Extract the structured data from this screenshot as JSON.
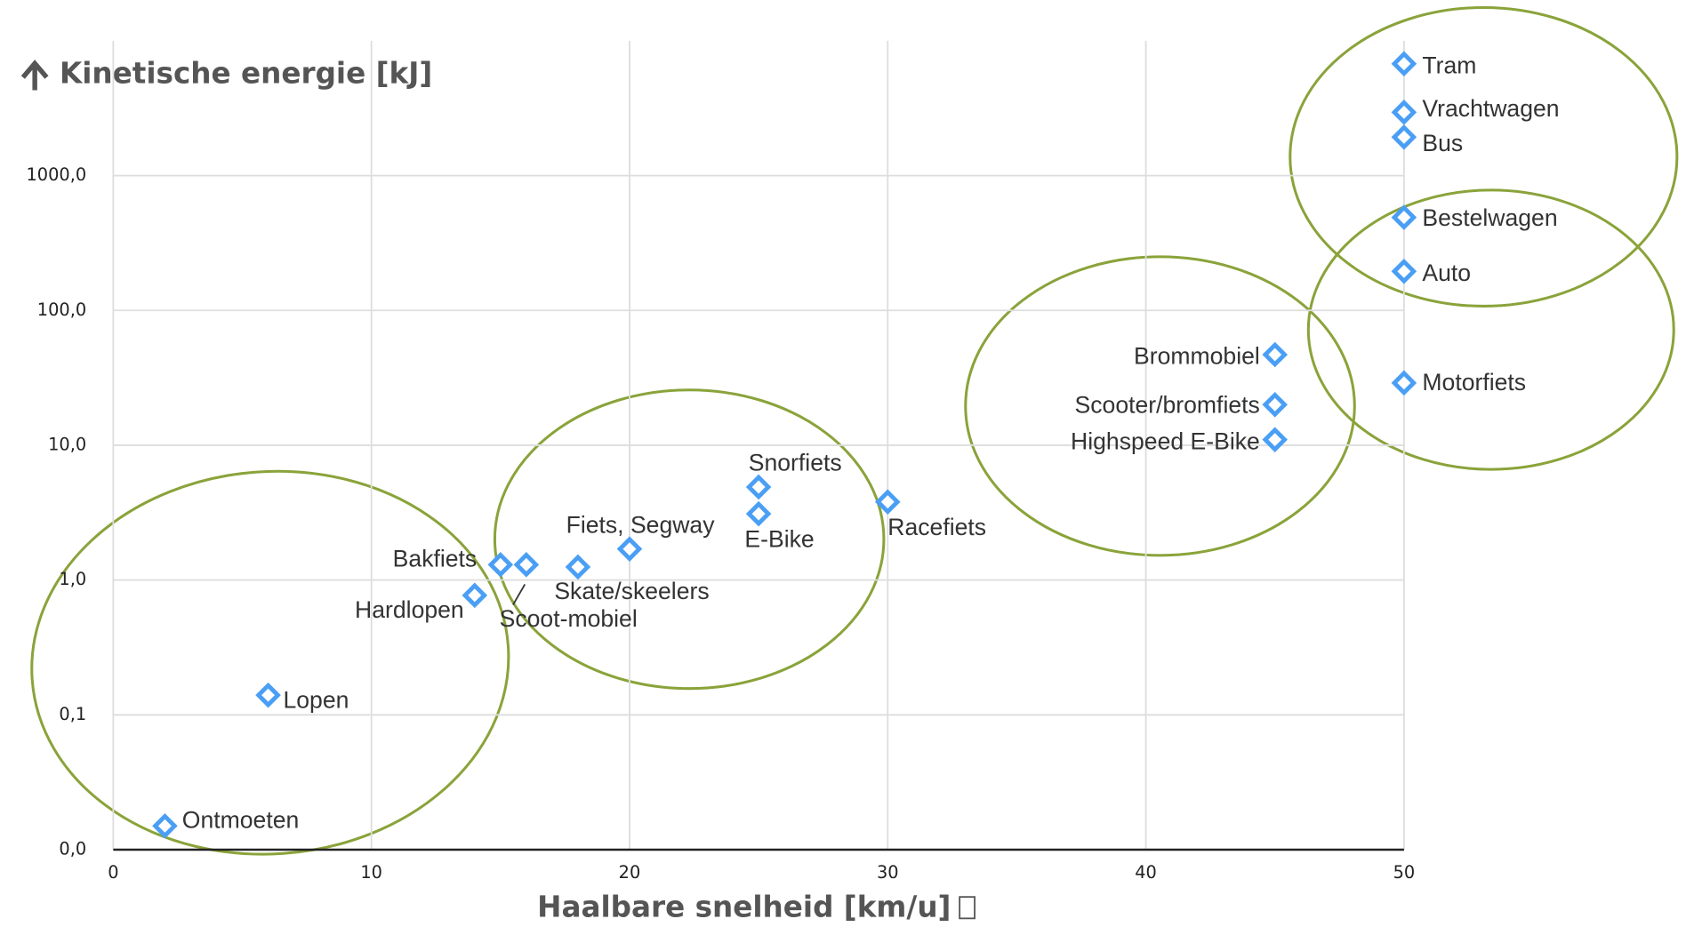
{
  "chart_data": {
    "type": "scatter",
    "title": "Kinetische energie [kJ]",
    "x_label": "Haalbare snelheid [km/u]",
    "point_labels": [
      "Ontmoeten",
      "Lopen",
      "Hardlopen",
      "Bakfiets",
      "Scoot-mobiel",
      "Skate/skeelers",
      "Fiets, Segway",
      "E-Bike",
      "Snorfiets",
      "Racefiets",
      "Highspeed E-Bike",
      "Scooter/bromfiets",
      "Brommobiel",
      "Motorfiets",
      "Auto",
      "Bestelwagen",
      "Bus",
      "Vrachtwagen",
      "Tram"
    ],
    "x": [
      2,
      6,
      14,
      15,
      16,
      18,
      20,
      25,
      25,
      30,
      45,
      45,
      45,
      50,
      50,
      50,
      50,
      50,
      50
    ],
    "values": [
      0.015,
      0.14,
      0.77,
      1.3,
      1.3,
      1.25,
      1.7,
      3.1,
      4.9,
      3.8,
      11,
      20,
      47,
      29,
      195,
      490,
      1930,
      2950,
      6760
    ],
    "color": "#4a9ff5",
    "xlim": [
      0,
      50
    ],
    "xticks": [
      0,
      10,
      20,
      30,
      40,
      50
    ],
    "ylim": [
      0.01,
      10000
    ],
    "yticks": [
      {
        "value": 0.01,
        "label": "0,0"
      },
      {
        "value": 0.1,
        "label": "0,1"
      },
      {
        "value": 1,
        "label": "1,0"
      },
      {
        "value": 10,
        "label": "10,0"
      },
      {
        "value": 100,
        "label": "100,0"
      },
      {
        "value": 1000,
        "label": "1000,0"
      }
    ],
    "y_log": true,
    "grid": true
  }
}
